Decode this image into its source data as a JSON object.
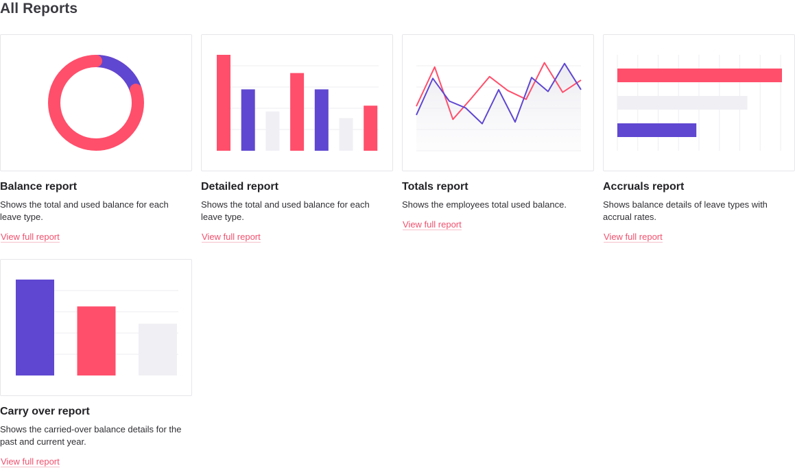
{
  "page": {
    "title": "All Reports"
  },
  "colors": {
    "primary": "#ff4f6b",
    "secondary": "#5f47d1",
    "neutral": "#f0eff4",
    "link": "#f0506e",
    "border": "#e6e6ea"
  },
  "reports": [
    {
      "id": "balance",
      "title": "Balance report",
      "description": "Shows the total and used balance for each leave type.",
      "link_label": "View full report",
      "chart": {
        "type": "donut",
        "used_fraction": 0.2
      }
    },
    {
      "id": "detailed",
      "title": "Detailed report",
      "description": "Shows the total and used balance for each leave type.",
      "link_label": "View full report",
      "chart": {
        "type": "bar",
        "values": [
          100,
          64,
          41,
          81,
          64,
          34,
          47
        ],
        "colors": [
          "primary",
          "secondary",
          "neutral",
          "primary",
          "secondary",
          "neutral",
          "primary"
        ]
      }
    },
    {
      "id": "totals",
      "title": "Totals report",
      "description": "Shows the employees total used balance.",
      "link_label": "View full report",
      "chart": {
        "type": "line",
        "series": [
          {
            "color": "primary",
            "values": [
              51,
              96,
              36,
              60,
              85,
              69,
              59,
              101,
              67,
              81
            ]
          },
          {
            "color": "secondary",
            "values": [
              41,
              83,
              57,
              49,
              31,
              70,
              33,
              84,
              68,
              100,
              70
            ]
          }
        ]
      }
    },
    {
      "id": "accruals",
      "title": "Accruals report",
      "description": "Shows balance details of leave types with accrual rates.",
      "link_label": "View full report",
      "chart": {
        "type": "hbar",
        "values": [
          100,
          79,
          48
        ],
        "colors": [
          "primary",
          "neutral",
          "secondary"
        ]
      }
    },
    {
      "id": "carryover",
      "title": "Carry over report",
      "description": "Shows the carried-over balance details for the past and current year.",
      "link_label": "View full report",
      "chart": {
        "type": "bar",
        "values": [
          100,
          72,
          54
        ],
        "colors": [
          "secondary",
          "primary",
          "neutral"
        ]
      }
    }
  ]
}
